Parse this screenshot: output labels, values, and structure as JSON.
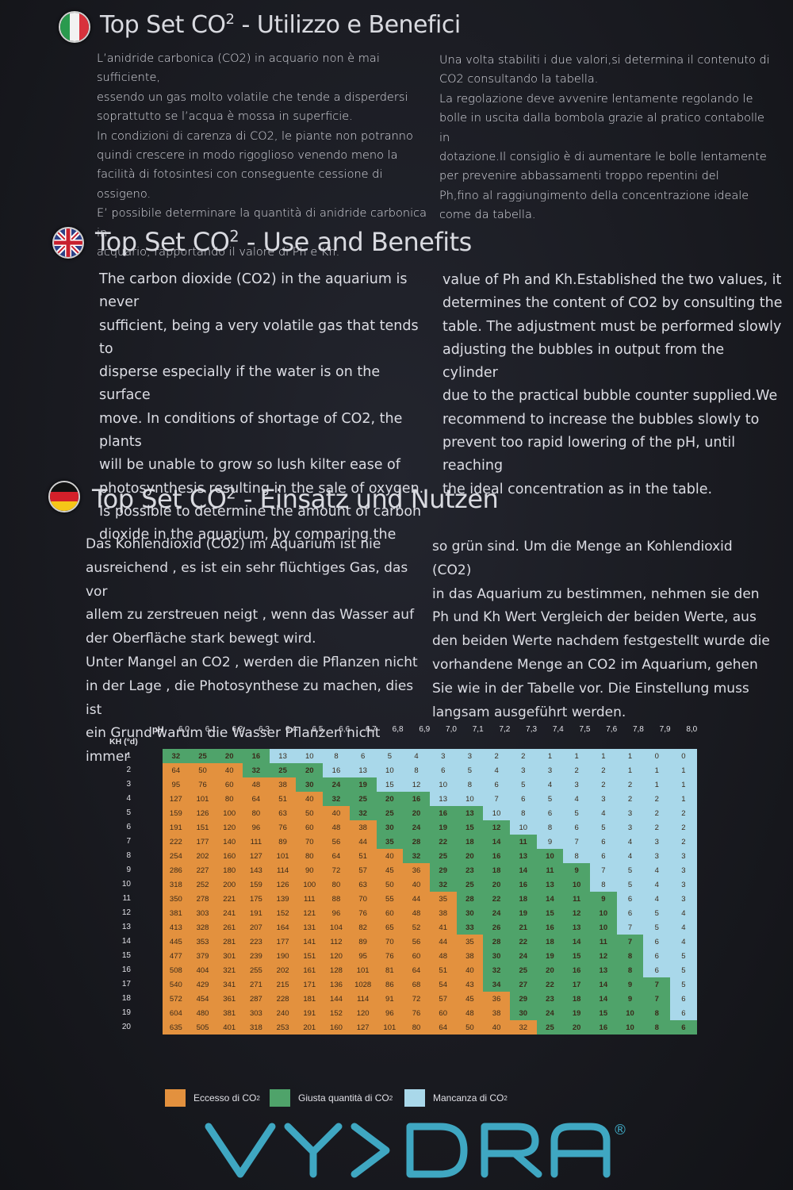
{
  "colors": {
    "excess": "#e3913e",
    "correct": "#4fa36a",
    "lack": "#a9d8ea",
    "logo": "#3fa7c2"
  },
  "sections": {
    "it": {
      "flag": "italy-flag-icon",
      "title_main": "Top Set CO",
      "title_sup": "2",
      "title_rest": " - Utilizzo e Benefici",
      "left_text": "L’anidride carbonica (CO2) in acquario non è mai sufficiente,\nessendo un gas molto volatile che tende a disperdersi\nsoprattutto se l’acqua è mossa in superficie.\nIn condizioni di carenza di CO2, le piante non potranno\nquindi crescere in modo rigoglioso venendo meno la\nfacilità di fotosintesi con conseguente cessione di ossigeno.\nE’ possibile determinare la quantità di anidride carbonica in\nacquario, rapportando il valore di Ph e Kh.",
      "right_text": "Una volta stabiliti i due valori,si determina il contenuto di\nCO2 consultando la tabella.\nLa regolazione deve avvenire lentamente regolando le\nbolle in uscita dalla bombola grazie al pratico contabolle in\ndotazione.Il consiglio è di aumentare le bolle lentamente\nper prevenire abbassamenti troppo repentini del\nPh,fino al raggiungimento della concentrazione ideale\ncome da tabella."
    },
    "en": {
      "flag": "uk-flag-icon",
      "title_main": "Top Set CO",
      "title_sup": "2",
      "title_rest": " - Use and Benefits",
      "left_text": "The carbon dioxide (CO2) in the aquarium is never\nsufficient, being a very volatile gas that tends to\ndisperse especially if the water is on the surface\nmove. In conditions of shortage of CO2, the plants\nwill be unable to grow so lush kilter ease of\nphotosynthesis resulting in the sale of oxygen.\nIs possible to determine the amount of carbon\ndioxide in the aquarium, by comparing the",
      "right_text": "value of Ph and Kh.Established the two values, it\ndetermines the content of CO2 by consulting the\ntable. The adjustment must be performed slowly\nadjusting the bubbles in output from the cylinder\ndue to the practical bubble counter supplied.We\nrecommend to increase the bubbles slowly to\nprevent too rapid lowering of the pH, until reaching\nthe ideal concentration as in the table."
    },
    "de": {
      "flag": "germany-flag-icon",
      "title_main": "Top Set CO",
      "title_sup": "2",
      "title_rest": " - Einsatz und Nutzen",
      "left_text": "Das Kohlendioxid (CO2) im Aquarium ist nie\nausreichend , es ist ein sehr flüchtiges Gas, das vor\nallem zu zerstreuen neigt  , wenn das Wasser auf\nder Oberfläche stark bewegt  wird.\nUnter Mangel an CO2 , werden die Pflanzen nicht\nin der Lage , die Photosynthese zu machen, dies ist\nein Grund warum die  Wasser Pflanzen nicht immer",
      "right_text": "so grün sind. Um die Menge an Kohlendioxid (CO2)\nin  das Aquarium zu bestimmen, nehmen sie den\nPh und Kh Wert Vergleich der beiden  Werte, aus\nden beiden Werte nachdem festgestellt wurde die\nvorhandene Menge an CO2 im Aquarium, gehen\nSie wie in der Tabelle vor. Die Einstellung muss\nlangsam ausgeführt werden."
    }
  },
  "chart_data": {
    "type": "table",
    "xlabel": "pH",
    "ylabel": "KH (°d)",
    "ph": [
      "6,0",
      "6,1",
      "6,2",
      "6,3",
      "6,4",
      "6,5",
      "6,6",
      "6,7",
      "6,8",
      "6,9",
      "7,0",
      "7,1",
      "7,2",
      "7,3",
      "7,4",
      "7,5",
      "7,6",
      "7,8",
      "7,9",
      "8,0"
    ],
    "kh": [
      "1",
      "2",
      "3",
      "4",
      "5",
      "6",
      "7",
      "8",
      "9",
      "10",
      "11",
      "12",
      "13",
      "14",
      "15",
      "16",
      "17",
      "18",
      "19",
      "20"
    ],
    "values": [
      [
        "32",
        "25",
        "20",
        "16",
        "13",
        "10",
        "8",
        "6",
        "5",
        "4",
        "3",
        "3",
        "2",
        "2",
        "1",
        "1",
        "1",
        "1",
        "0",
        "0"
      ],
      [
        "64",
        "50",
        "40",
        "32",
        "25",
        "20",
        "16",
        "13",
        "10",
        "8",
        "6",
        "5",
        "4",
        "3",
        "3",
        "2",
        "2",
        "1",
        "1",
        "1"
      ],
      [
        "95",
        "76",
        "60",
        "48",
        "38",
        "30",
        "24",
        "19",
        "15",
        "12",
        "10",
        "8",
        "6",
        "5",
        "4",
        "3",
        "2",
        "2",
        "1",
        "1"
      ],
      [
        "127",
        "101",
        "80",
        "64",
        "51",
        "40",
        "32",
        "25",
        "20",
        "16",
        "13",
        "10",
        "7",
        "6",
        "5",
        "4",
        "3",
        "2",
        "2",
        "1"
      ],
      [
        "159",
        "126",
        "100",
        "80",
        "63",
        "50",
        "40",
        "32",
        "25",
        "20",
        "16",
        "13",
        "10",
        "8",
        "6",
        "5",
        "4",
        "3",
        "2",
        "2"
      ],
      [
        "191",
        "151",
        "120",
        "96",
        "76",
        "60",
        "48",
        "38",
        "30",
        "24",
        "19",
        "15",
        "12",
        "10",
        "8",
        "6",
        "5",
        "3",
        "2",
        "2"
      ],
      [
        "222",
        "177",
        "140",
        "111",
        "89",
        "70",
        "56",
        "44",
        "35",
        "28",
        "22",
        "18",
        "14",
        "11",
        "9",
        "7",
        "6",
        "4",
        "3",
        "2"
      ],
      [
        "254",
        "202",
        "160",
        "127",
        "101",
        "80",
        "64",
        "51",
        "40",
        "32",
        "25",
        "20",
        "16",
        "13",
        "10",
        "8",
        "6",
        "4",
        "3",
        "3"
      ],
      [
        "286",
        "227",
        "180",
        "143",
        "114",
        "90",
        "72",
        "57",
        "45",
        "36",
        "29",
        "23",
        "18",
        "14",
        "11",
        "9",
        "7",
        "5",
        "4",
        "3"
      ],
      [
        "318",
        "252",
        "200",
        "159",
        "126",
        "100",
        "80",
        "63",
        "50",
        "40",
        "32",
        "25",
        "20",
        "16",
        "13",
        "10",
        "8",
        "5",
        "4",
        "3"
      ],
      [
        "350",
        "278",
        "221",
        "175",
        "139",
        "111",
        "88",
        "70",
        "55",
        "44",
        "35",
        "28",
        "22",
        "18",
        "14",
        "11",
        "9",
        "6",
        "4",
        "3"
      ],
      [
        "381",
        "303",
        "241",
        "191",
        "152",
        "121",
        "96",
        "76",
        "60",
        "48",
        "38",
        "30",
        "24",
        "19",
        "15",
        "12",
        "10",
        "6",
        "5",
        "4"
      ],
      [
        "413",
        "328",
        "261",
        "207",
        "164",
        "131",
        "104",
        "82",
        "65",
        "52",
        "41",
        "33",
        "26",
        "21",
        "16",
        "13",
        "10",
        "7",
        "5",
        "4"
      ],
      [
        "445",
        "353",
        "281",
        "223",
        "177",
        "141",
        "112",
        "89",
        "70",
        "56",
        "44",
        "35",
        "28",
        "22",
        "18",
        "14",
        "11",
        "7",
        "6",
        "4"
      ],
      [
        "477",
        "379",
        "301",
        "239",
        "190",
        "151",
        "120",
        "95",
        "76",
        "60",
        "48",
        "38",
        "30",
        "24",
        "19",
        "15",
        "12",
        "8",
        "6",
        "5"
      ],
      [
        "508",
        "404",
        "321",
        "255",
        "202",
        "161",
        "128",
        "101",
        "81",
        "64",
        "51",
        "40",
        "32",
        "25",
        "20",
        "16",
        "13",
        "8",
        "6",
        "5"
      ],
      [
        "540",
        "429",
        "341",
        "271",
        "215",
        "171",
        "136",
        "1028",
        "86",
        "68",
        "54",
        "43",
        "34",
        "27",
        "22",
        "17",
        "14",
        "9",
        "7",
        "5"
      ],
      [
        "572",
        "454",
        "361",
        "287",
        "228",
        "181",
        "144",
        "114",
        "91",
        "72",
        "57",
        "45",
        "36",
        "29",
        "23",
        "18",
        "14",
        "9",
        "7",
        "6"
      ],
      [
        "604",
        "480",
        "381",
        "303",
        "240",
        "191",
        "152",
        "120",
        "96",
        "76",
        "60",
        "48",
        "38",
        "30",
        "24",
        "19",
        "15",
        "10",
        "8",
        "6"
      ],
      [
        "635",
        "505",
        "401",
        "318",
        "253",
        "201",
        "160",
        "127",
        "101",
        "80",
        "64",
        "50",
        "40",
        "32",
        "25",
        "20",
        "16",
        "10",
        "8",
        "6"
      ]
    ],
    "green_start": [
      0,
      3,
      5,
      6,
      7,
      8,
      8,
      9,
      10,
      10,
      11,
      11,
      11,
      12,
      12,
      12,
      12,
      13,
      13,
      14
    ],
    "green_end": [
      3,
      5,
      7,
      9,
      11,
      12,
      13,
      14,
      15,
      15,
      16,
      16,
      16,
      17,
      17,
      17,
      18,
      18,
      18,
      19
    ],
    "legend": [
      {
        "label": "Eccesso di CO",
        "sup": "2",
        "color": "#e3913e"
      },
      {
        "label": "Giusta quantità di CO",
        "sup": "2",
        "color": "#4fa36a"
      },
      {
        "label": "Mancanza di CO",
        "sup": "2",
        "color": "#a9d8ea"
      }
    ]
  },
  "brand": {
    "name": "VYDRA",
    "registered": "®"
  }
}
